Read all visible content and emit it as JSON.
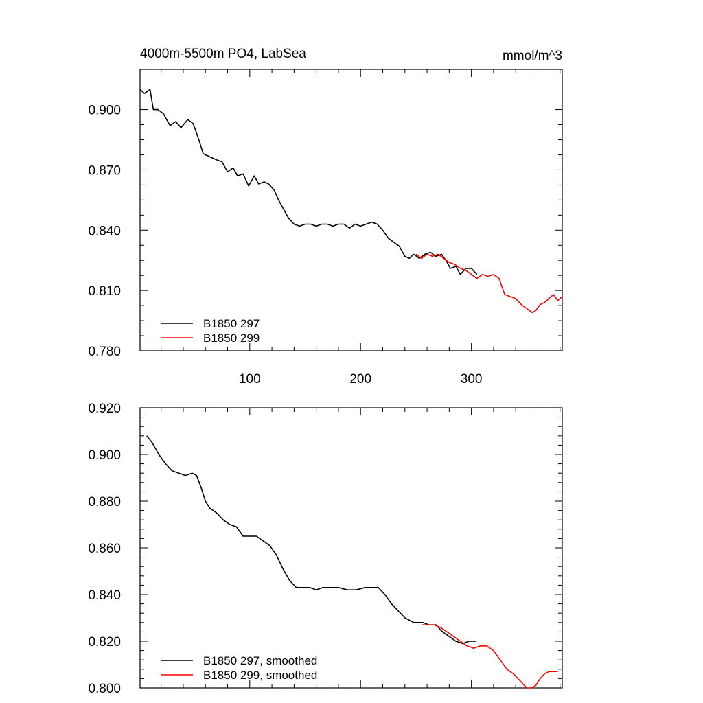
{
  "chart_data": [
    {
      "type": "line",
      "title": "4000m-5500m PO4, LabSea",
      "units": "mmol/m^3",
      "xlabel": "",
      "ylabel": "",
      "xlim": [
        1,
        382
      ],
      "ylim": [
        0.78,
        0.92
      ],
      "xticks": [
        100,
        200,
        300
      ],
      "yticks": [
        0.78,
        0.81,
        0.84,
        0.87,
        0.9
      ],
      "ytick_labels": [
        "0.780",
        "0.810",
        "0.840",
        "0.870",
        "0.900"
      ],
      "grid": false,
      "legend": "bottom-left",
      "series": [
        {
          "name": "B1850 297",
          "color": "#000000",
          "x": [
            1,
            5,
            10,
            13,
            17,
            22,
            28,
            33,
            38,
            44,
            49,
            54,
            58,
            62,
            66,
            70,
            75,
            80,
            85,
            89,
            94,
            99,
            104,
            108,
            113,
            117,
            122,
            126,
            130,
            135,
            140,
            145,
            150,
            155,
            160,
            165,
            170,
            175,
            180,
            185,
            190,
            195,
            200,
            205,
            210,
            215,
            220,
            225,
            230,
            235,
            240,
            244,
            248,
            253,
            258,
            263,
            268,
            273,
            277,
            281,
            286,
            290,
            295,
            300,
            305
          ],
          "values": [
            0.91,
            0.908,
            0.91,
            0.9,
            0.9,
            0.898,
            0.892,
            0.894,
            0.891,
            0.895,
            0.893,
            0.885,
            0.878,
            0.877,
            0.876,
            0.875,
            0.874,
            0.869,
            0.871,
            0.867,
            0.868,
            0.862,
            0.867,
            0.863,
            0.864,
            0.863,
            0.86,
            0.855,
            0.851,
            0.846,
            0.843,
            0.842,
            0.843,
            0.843,
            0.842,
            0.843,
            0.843,
            0.842,
            0.843,
            0.843,
            0.841,
            0.843,
            0.842,
            0.843,
            0.844,
            0.843,
            0.84,
            0.836,
            0.834,
            0.832,
            0.827,
            0.826,
            0.828,
            0.826,
            0.828,
            0.829,
            0.827,
            0.828,
            0.825,
            0.821,
            0.822,
            0.818,
            0.821,
            0.821,
            0.818
          ]
        },
        {
          "name": "B1850 299",
          "color": "#ff0000",
          "x": [
            250,
            255,
            260,
            265,
            270,
            275,
            280,
            285,
            290,
            295,
            300,
            305,
            310,
            315,
            320,
            325,
            330,
            335,
            340,
            345,
            350,
            355,
            358,
            362,
            366,
            370,
            374,
            378,
            382
          ],
          "values": [
            0.828,
            0.826,
            0.828,
            0.827,
            0.828,
            0.826,
            0.824,
            0.823,
            0.821,
            0.82,
            0.818,
            0.816,
            0.818,
            0.817,
            0.818,
            0.816,
            0.808,
            0.807,
            0.806,
            0.803,
            0.801,
            0.799,
            0.8,
            0.803,
            0.804,
            0.806,
            0.808,
            0.805,
            0.807
          ]
        }
      ]
    },
    {
      "type": "line",
      "title": "",
      "xlabel": "",
      "ylabel": "",
      "xlim": [
        1,
        382
      ],
      "ylim": [
        0.8,
        0.92
      ],
      "yticks": [
        0.8,
        0.82,
        0.84,
        0.86,
        0.88,
        0.9,
        0.92
      ],
      "ytick_labels": [
        "0.800",
        "0.820",
        "0.840",
        "0.860",
        "0.880",
        "0.900",
        "0.920"
      ],
      "grid": false,
      "legend": "bottom-left",
      "series": [
        {
          "name": "B1850 297, smoothed",
          "color": "#000000",
          "x": [
            7,
            12,
            18,
            24,
            30,
            36,
            42,
            48,
            52,
            56,
            60,
            64,
            70,
            76,
            82,
            88,
            94,
            100,
            106,
            112,
            118,
            124,
            130,
            136,
            142,
            148,
            154,
            160,
            166,
            172,
            180,
            188,
            196,
            204,
            212,
            216,
            222,
            228,
            234,
            240,
            248,
            256,
            262,
            268,
            274,
            280,
            286,
            292,
            298,
            304
          ],
          "values": [
            0.908,
            0.905,
            0.9,
            0.896,
            0.893,
            0.892,
            0.891,
            0.892,
            0.891,
            0.886,
            0.88,
            0.877,
            0.875,
            0.872,
            0.87,
            0.869,
            0.865,
            0.865,
            0.865,
            0.863,
            0.861,
            0.857,
            0.851,
            0.846,
            0.843,
            0.843,
            0.843,
            0.842,
            0.843,
            0.843,
            0.843,
            0.842,
            0.842,
            0.843,
            0.843,
            0.843,
            0.84,
            0.836,
            0.833,
            0.83,
            0.828,
            0.828,
            0.827,
            0.827,
            0.824,
            0.822,
            0.82,
            0.819,
            0.82,
            0.82
          ]
        },
        {
          "name": "B1850 299, smoothed",
          "color": "#ff0000",
          "x": [
            255,
            260,
            266,
            272,
            278,
            284,
            290,
            296,
            302,
            308,
            314,
            320,
            326,
            332,
            338,
            344,
            350,
            354,
            358,
            362,
            366,
            370,
            374,
            378
          ],
          "values": [
            0.827,
            0.827,
            0.827,
            0.826,
            0.824,
            0.822,
            0.82,
            0.818,
            0.817,
            0.818,
            0.818,
            0.816,
            0.812,
            0.808,
            0.806,
            0.803,
            0.8,
            0.8,
            0.801,
            0.804,
            0.806,
            0.807,
            0.807,
            0.807
          ]
        }
      ]
    }
  ]
}
